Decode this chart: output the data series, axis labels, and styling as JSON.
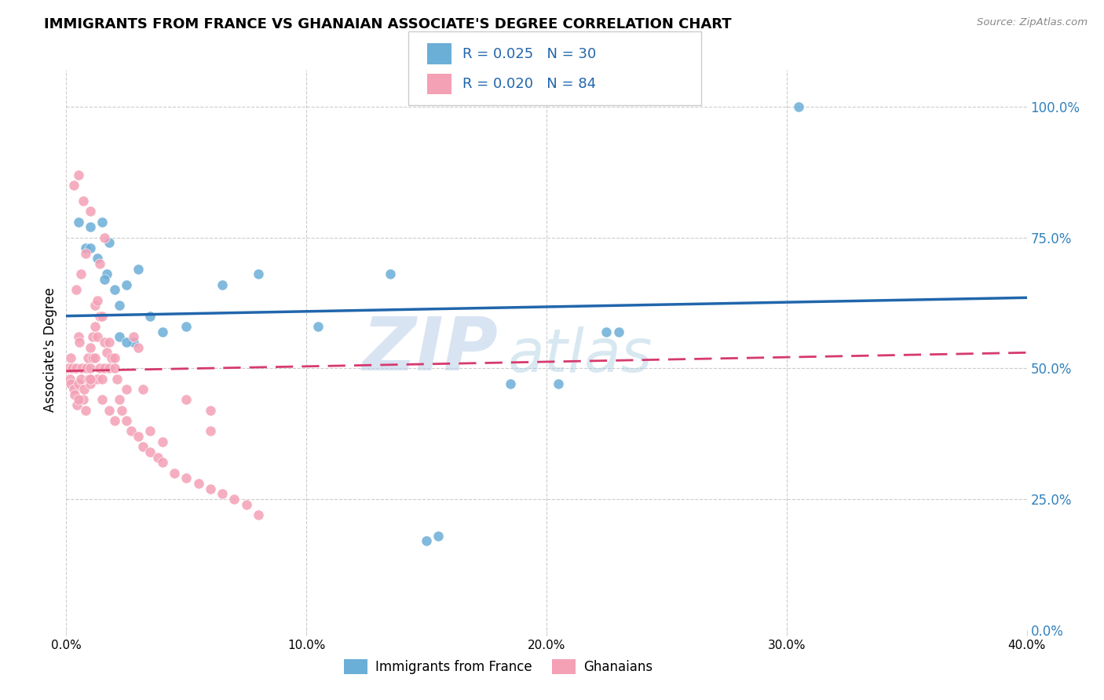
{
  "title": "IMMIGRANTS FROM FRANCE VS GHANAIAN ASSOCIATE'S DEGREE CORRELATION CHART",
  "source": "Source: ZipAtlas.com",
  "ylabel": "Associate's Degree",
  "ytick_labels": [
    "0.0%",
    "25.0%",
    "50.0%",
    "75.0%",
    "100.0%"
  ],
  "ytick_values": [
    0,
    25,
    50,
    75,
    100
  ],
  "xtick_labels": [
    "0.0%",
    "10.0%",
    "20.0%",
    "30.0%",
    "40.0%"
  ],
  "xtick_values": [
    0,
    10,
    20,
    30,
    40
  ],
  "xmin": 0.0,
  "xmax": 40.0,
  "ymin": 0.0,
  "ymax": 107.0,
  "legend1_r": "0.025",
  "legend1_n": "30",
  "legend2_r": "0.020",
  "legend2_n": "84",
  "blue_color": "#6baed6",
  "pink_color": "#f4a0b5",
  "line_blue": "#2166ac",
  "line_pink": "#d63a6e",
  "watermark_zip": "ZIP",
  "watermark_atlas": "atlas",
  "blue_scatter_x": [
    0.5,
    0.8,
    1.0,
    1.0,
    1.3,
    1.5,
    1.7,
    1.8,
    2.0,
    2.2,
    2.5,
    2.8,
    3.0,
    3.5,
    4.0,
    5.0,
    6.5,
    8.0,
    10.5,
    13.5,
    18.5,
    20.5,
    22.5,
    23.0,
    30.5,
    1.6,
    2.2,
    2.5,
    15.0,
    15.5
  ],
  "blue_scatter_y": [
    78,
    73,
    77,
    73,
    71,
    78,
    68,
    74,
    65,
    62,
    66,
    55,
    69,
    60,
    57,
    58,
    66,
    68,
    58,
    68,
    47,
    47,
    57,
    57,
    100,
    67,
    56,
    55,
    17,
    18
  ],
  "pink_scatter_x": [
    0.1,
    0.15,
    0.2,
    0.2,
    0.25,
    0.3,
    0.35,
    0.4,
    0.45,
    0.5,
    0.5,
    0.55,
    0.6,
    0.65,
    0.7,
    0.75,
    0.8,
    0.85,
    0.9,
    0.95,
    1.0,
    1.0,
    1.0,
    1.1,
    1.1,
    1.2,
    1.2,
    1.3,
    1.3,
    1.4,
    1.4,
    1.5,
    1.5,
    1.6,
    1.6,
    1.7,
    1.8,
    1.8,
    1.9,
    2.0,
    2.0,
    2.1,
    2.2,
    2.3,
    2.5,
    2.7,
    3.0,
    3.0,
    3.2,
    3.5,
    3.8,
    4.0,
    4.5,
    5.0,
    5.5,
    6.0,
    6.5,
    7.0,
    7.5,
    8.0,
    1.2,
    1.4,
    1.6,
    1.0,
    0.8,
    0.6,
    0.4,
    0.3,
    0.5,
    0.7,
    2.5,
    1.5,
    1.8,
    2.0,
    3.5,
    4.0,
    5.0,
    6.0,
    2.8,
    3.2,
    0.5,
    1.0,
    1.3,
    6.0
  ],
  "pink_scatter_y": [
    50,
    48,
    52,
    47,
    50,
    46,
    45,
    50,
    43,
    47,
    56,
    55,
    48,
    50,
    44,
    46,
    42,
    50,
    52,
    48,
    50,
    54,
    47,
    56,
    52,
    52,
    58,
    56,
    48,
    60,
    50,
    60,
    48,
    55,
    50,
    53,
    55,
    50,
    52,
    52,
    50,
    48,
    44,
    42,
    40,
    38,
    37,
    54,
    35,
    34,
    33,
    32,
    30,
    29,
    28,
    27,
    26,
    25,
    24,
    22,
    62,
    70,
    75,
    80,
    72,
    68,
    65,
    85,
    87,
    82,
    46,
    44,
    42,
    40,
    38,
    36,
    44,
    42,
    56,
    46,
    44,
    48,
    63,
    38
  ]
}
